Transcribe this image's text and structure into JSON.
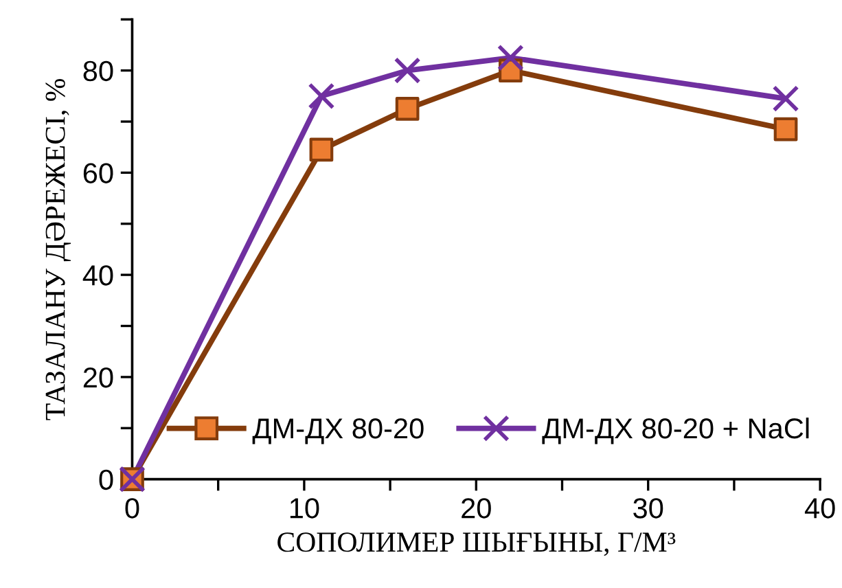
{
  "chart_data": {
    "type": "line",
    "xlabel": "СОПОЛИМЕР ШЫҒЫНЫ, Г/М³",
    "ylabel": "ТАЗАЛАНУ ДӘРЕЖЕСІ, %",
    "x": [
      0,
      11,
      16,
      22,
      38
    ],
    "series": [
      {
        "name": "ДМ-ДХ 80-20",
        "color": "#843c0c",
        "colors": [
          "#ed7d31",
          "#ed7d31",
          "#ed7d31",
          "#ed7d31",
          "#ed7d31"
        ],
        "marker": "square",
        "values": [
          0,
          64.5,
          72.5,
          80,
          68.5
        ]
      },
      {
        "name": "ДМ-ДХ 80-20 + NaCl",
        "color": "#7030a0",
        "marker": "cross",
        "values": [
          0,
          75,
          80,
          82.5,
          74.5
        ]
      }
    ],
    "xlim": [
      0,
      40
    ],
    "xticks": [
      0,
      {
        "value": 5,
        "label": null
      },
      10,
      {
        "value": 15,
        "label": null
      },
      20,
      {
        "value": 25,
        "label": null
      },
      30,
      {
        "value": 35,
        "label": null
      },
      40
    ],
    "ylim": [
      0,
      90
    ],
    "yticks": [
      0,
      {
        "value": 10,
        "label": null
      },
      20,
      {
        "value": 30,
        "label": null
      },
      40,
      {
        "value": 50,
        "label": null
      },
      60,
      {
        "value": 70,
        "label": null
      },
      80,
      {
        "value": 90,
        "label": null
      }
    ],
    "grid": false,
    "legend": "bottom"
  }
}
